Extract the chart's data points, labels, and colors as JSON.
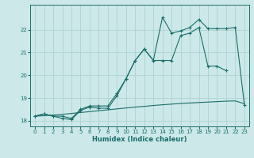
{
  "xlabel": "Humidex (Indice chaleur)",
  "bg_color": "#cce8e8",
  "line_color": "#1a6e6a",
  "grid_color": "#aacece",
  "xlim": [
    -0.5,
    23.5
  ],
  "ylim": [
    17.75,
    23.1
  ],
  "xticks": [
    0,
    1,
    2,
    3,
    4,
    5,
    6,
    7,
    8,
    9,
    10,
    11,
    12,
    13,
    14,
    15,
    16,
    17,
    18,
    19,
    20,
    21,
    22,
    23
  ],
  "yticks": [
    18,
    19,
    20,
    21,
    22
  ],
  "ytick_labels": [
    "18",
    "19",
    "20",
    "21",
    "22"
  ],
  "line_straight": [
    18.2,
    18.22,
    18.25,
    18.28,
    18.32,
    18.36,
    18.4,
    18.44,
    18.48,
    18.52,
    18.56,
    18.6,
    18.63,
    18.67,
    18.7,
    18.73,
    18.76,
    18.78,
    18.8,
    18.82,
    18.84,
    18.86,
    18.87,
    18.75
  ],
  "line_mid": [
    18.2,
    18.3,
    18.2,
    18.2,
    18.1,
    18.5,
    18.65,
    18.65,
    18.65,
    19.2,
    19.85,
    20.65,
    21.15,
    20.65,
    20.65,
    20.65,
    21.75,
    21.85,
    22.1,
    20.4,
    20.4,
    20.2,
    null,
    null
  ],
  "line_top": [
    18.2,
    18.3,
    18.2,
    18.1,
    18.05,
    18.45,
    18.6,
    18.55,
    18.55,
    19.1,
    19.85,
    20.65,
    21.15,
    20.65,
    22.55,
    21.85,
    21.95,
    22.1,
    22.45,
    22.05,
    22.05,
    22.05,
    22.1,
    18.7
  ]
}
